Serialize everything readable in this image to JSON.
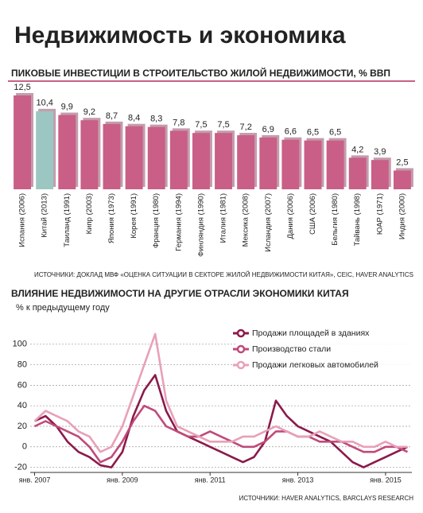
{
  "header": {
    "title": "Недвижимость и экономика"
  },
  "chart_data": [
    {
      "type": "bar",
      "title": "ПИКОВЫЕ ИНВЕСТИЦИИ В СТРОИТЕЛЬСТВО ЖИЛОЙ НЕДВИЖИМОСТИ, % ВВП",
      "categories": [
        "Испания (2006)",
        "Китай (2013)",
        "Таиланд (1991)",
        "Кипр (2003)",
        "Япония (1973)",
        "Корея (1991)",
        "Франция (1980)",
        "Германия (1994)",
        "Финляндия (1990)",
        "Италия (1981)",
        "Мексика (2008)",
        "Исландия (2007)",
        "Дания (2006)",
        "США (2006)",
        "Бельгия (1980)",
        "Тайвань (1998)",
        "ЮАР (1971)",
        "Индия (2000)"
      ],
      "values": [
        12.5,
        10.4,
        9.9,
        9.2,
        8.7,
        8.4,
        8.3,
        7.8,
        7.5,
        7.5,
        7.2,
        6.9,
        6.6,
        6.5,
        6.5,
        4.2,
        3.9,
        2.5
      ],
      "value_labels": [
        "12,5",
        "10,4",
        "9,9",
        "9,2",
        "8,7",
        "8,4",
        "8,3",
        "7,8",
        "7,5",
        "7,5",
        "7,2",
        "6,9",
        "6,6",
        "6,5",
        "6,5",
        "4,2",
        "3,9",
        "2,5"
      ],
      "colors": [
        "#c95f86",
        "#9cc6c2",
        "#c95f86",
        "#c95f86",
        "#c95f86",
        "#c95f86",
        "#c95f86",
        "#c95f86",
        "#c95f86",
        "#c95f86",
        "#c95f86",
        "#c95f86",
        "#c95f86",
        "#c95f86",
        "#c95f86",
        "#c95f86",
        "#c95f86",
        "#c95f86"
      ],
      "source": "ИСТОЧНИКИ: ДОКЛАД МВФ «ОЦЕНКА СИТУАЦИИ В СЕКТОРЕ ЖИЛОЙ НЕДВИЖИМОСТИ КИТАЯ», CEIC, HAVER ANALYTICS"
    },
    {
      "type": "line",
      "title": "ВЛИЯНИЕ НЕДВИЖИМОСТИ НА ДРУГИЕ ОТРАСЛИ ЭКОНОМИКИ КИТАЯ",
      "y_label": "% к предыдущему году",
      "x": [
        2007,
        2007.25,
        2007.5,
        2007.75,
        2008,
        2008.25,
        2008.5,
        2008.75,
        2009,
        2009.25,
        2009.5,
        2009.75,
        2010,
        2010.25,
        2010.5,
        2010.75,
        2011,
        2011.25,
        2011.5,
        2011.75,
        2012,
        2012.25,
        2012.5,
        2012.75,
        2013,
        2013.25,
        2013.5,
        2013.75,
        2014,
        2014.25,
        2014.5,
        2014.75,
        2015,
        2015.25,
        2015.5
      ],
      "series": [
        {
          "name": "Продажи площадей в зданиях",
          "color": "#8b1a4a",
          "values": [
            25,
            30,
            20,
            5,
            -5,
            -10,
            -18,
            -20,
            -5,
            30,
            55,
            70,
            35,
            15,
            10,
            5,
            0,
            -5,
            -10,
            -15,
            -10,
            5,
            45,
            30,
            20,
            15,
            10,
            5,
            -5,
            -15,
            -20,
            -15,
            -10,
            -5,
            0
          ]
        },
        {
          "name": "Производство стали",
          "color": "#c04a7a",
          "values": [
            20,
            25,
            20,
            15,
            10,
            0,
            -15,
            -10,
            5,
            25,
            40,
            35,
            20,
            15,
            10,
            10,
            15,
            10,
            5,
            0,
            0,
            5,
            15,
            15,
            10,
            10,
            5,
            5,
            5,
            0,
            -5,
            -5,
            0,
            0,
            -5
          ]
        },
        {
          "name": "Продажи легковых автомобилей",
          "color": "#e8a0b8",
          "values": [
            25,
            35,
            30,
            25,
            15,
            10,
            -5,
            0,
            20,
            50,
            80,
            110,
            45,
            20,
            15,
            10,
            5,
            5,
            5,
            10,
            10,
            15,
            20,
            15,
            10,
            10,
            15,
            10,
            5,
            5,
            0,
            0,
            5,
            0,
            0
          ]
        }
      ],
      "xlim": [
        2006.9,
        2015.6
      ],
      "xticks": [
        {
          "value": 2007,
          "label": "янв. 2007"
        },
        {
          "value": 2009,
          "label": "янв. 2009"
        },
        {
          "value": 2011,
          "label": "янв. 2011"
        },
        {
          "value": 2013,
          "label": "янв. 2013"
        },
        {
          "value": 2015,
          "label": "янв. 2015"
        }
      ],
      "ylim": [
        -25,
        120
      ],
      "yticks": [
        -20,
        0,
        20,
        40,
        60,
        80,
        100
      ],
      "grid": true,
      "source": "ИСТОЧНИКИ: HAVER ANALYTICS, BARCLAYS RESEARCH"
    }
  ]
}
